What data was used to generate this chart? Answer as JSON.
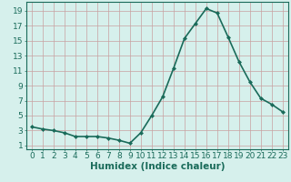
{
  "x": [
    0,
    1,
    2,
    3,
    4,
    5,
    6,
    7,
    8,
    9,
    10,
    11,
    12,
    13,
    14,
    15,
    16,
    17,
    18,
    19,
    20,
    21,
    22,
    23
  ],
  "y": [
    3.5,
    3.2,
    3.0,
    2.7,
    2.2,
    2.2,
    2.2,
    2.0,
    1.7,
    1.3,
    2.7,
    5.0,
    7.5,
    11.3,
    15.3,
    17.3,
    19.3,
    18.7,
    15.5,
    12.2,
    9.5,
    7.3,
    6.5,
    5.5
  ],
  "line_color": "#1a6b5a",
  "marker": "D",
  "marker_size": 2.0,
  "background_color": "#d6f0ec",
  "grid_color": "#c8a0a0",
  "xlabel": "Humidex (Indice chaleur)",
  "xlabel_fontsize": 7.5,
  "ylabel_ticks": [
    1,
    3,
    5,
    7,
    9,
    11,
    13,
    15,
    17,
    19
  ],
  "xlim": [
    -0.5,
    23.5
  ],
  "ylim": [
    0.5,
    20.2
  ],
  "xtick_labels": [
    "0",
    "1",
    "2",
    "3",
    "4",
    "5",
    "6",
    "7",
    "8",
    "9",
    "10",
    "11",
    "12",
    "13",
    "14",
    "15",
    "16",
    "17",
    "18",
    "19",
    "20",
    "21",
    "22",
    "23"
  ],
  "tick_fontsize": 6.5,
  "line_width": 1.2
}
